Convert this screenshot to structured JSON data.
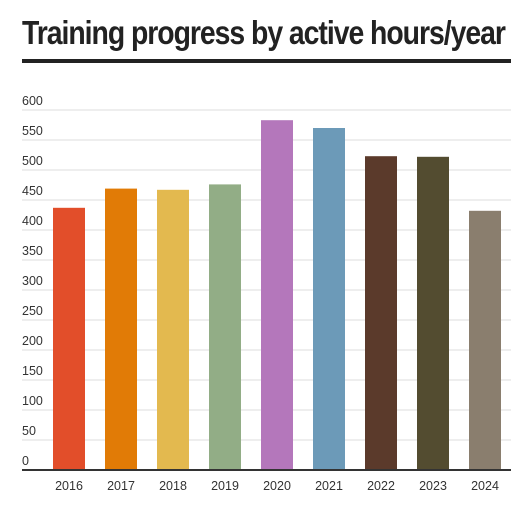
{
  "chart_title": "Training progress by active hours/year",
  "chart_data": {
    "type": "bar",
    "title": "Training progress by active hours/year",
    "xlabel": "",
    "ylabel": "",
    "categories": [
      "2016",
      "2017",
      "2018",
      "2019",
      "2020",
      "2021",
      "2022",
      "2023",
      "2024"
    ],
    "values": [
      437,
      469,
      467,
      476,
      583,
      570,
      523,
      522,
      432
    ],
    "colors": [
      "#e24e2a",
      "#e17b06",
      "#e3b94f",
      "#92ad86",
      "#b477bb",
      "#6c9ab8",
      "#5b3a2b",
      "#534c30",
      "#8a7e6e"
    ],
    "ylim": [
      0,
      600
    ],
    "yticks": [
      0,
      50,
      100,
      150,
      200,
      250,
      300,
      350,
      400,
      450,
      500,
      550,
      600
    ],
    "grid": true,
    "legend": "none"
  }
}
